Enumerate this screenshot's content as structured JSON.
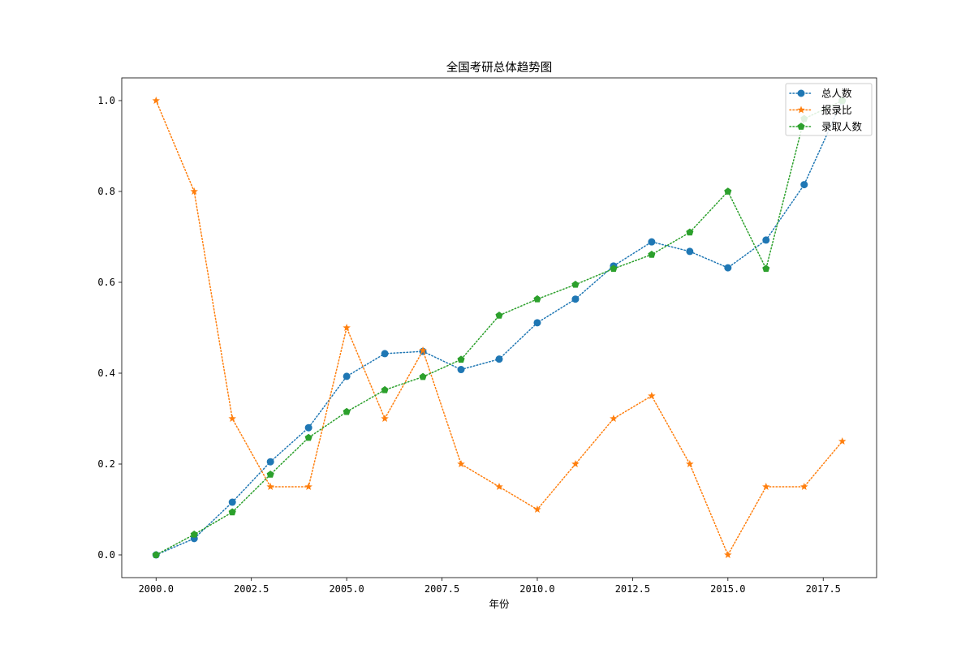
{
  "chart_data": {
    "type": "line",
    "title": "全国考研总体趋势图",
    "xlabel": "年份",
    "ylabel": "",
    "xlim": [
      1999.1,
      2018.9
    ],
    "ylim": [
      -0.05,
      1.05
    ],
    "xticks": [
      2000.0,
      2002.5,
      2005.0,
      2007.5,
      2010.0,
      2012.5,
      2015.0,
      2017.5
    ],
    "xtick_labels": [
      "2000.0",
      "2002.5",
      "2005.0",
      "2007.5",
      "2010.0",
      "2012.5",
      "2015.0",
      "2017.5"
    ],
    "yticks": [
      0.0,
      0.2,
      0.4,
      0.6,
      0.8,
      1.0
    ],
    "ytick_labels": [
      "0.0",
      "0.2",
      "0.4",
      "0.6",
      "0.8",
      "1.0"
    ],
    "grid": false,
    "legend_position": "top-right",
    "line_style": "dotted",
    "x": [
      2000,
      2001,
      2002,
      2003,
      2004,
      2005,
      2006,
      2007,
      2008,
      2009,
      2010,
      2011,
      2012,
      2013,
      2014,
      2015,
      2016,
      2017,
      2018
    ],
    "series": [
      {
        "name": "总人数",
        "marker": "circle",
        "color": "#1f77b4",
        "values": [
          0.0,
          0.036,
          0.116,
          0.205,
          0.28,
          0.393,
          0.443,
          0.448,
          0.408,
          0.431,
          0.511,
          0.563,
          0.636,
          0.689,
          0.668,
          0.632,
          0.693,
          0.815,
          1.0
        ]
      },
      {
        "name": "报录比",
        "marker": "star",
        "color": "#ff7f0e",
        "values": [
          1.0,
          0.8,
          0.3,
          0.15,
          0.15,
          0.5,
          0.3,
          0.45,
          0.2,
          0.15,
          0.1,
          0.2,
          0.3,
          0.35,
          0.2,
          0.0,
          0.15,
          0.15,
          0.25
        ]
      },
      {
        "name": "录取人数",
        "marker": "pentagon",
        "color": "#2ca02c",
        "values": [
          0.0,
          0.045,
          0.094,
          0.177,
          0.258,
          0.315,
          0.363,
          0.392,
          0.43,
          0.527,
          0.563,
          0.595,
          0.63,
          0.661,
          0.71,
          0.8,
          0.63,
          0.96,
          1.0
        ]
      }
    ]
  }
}
